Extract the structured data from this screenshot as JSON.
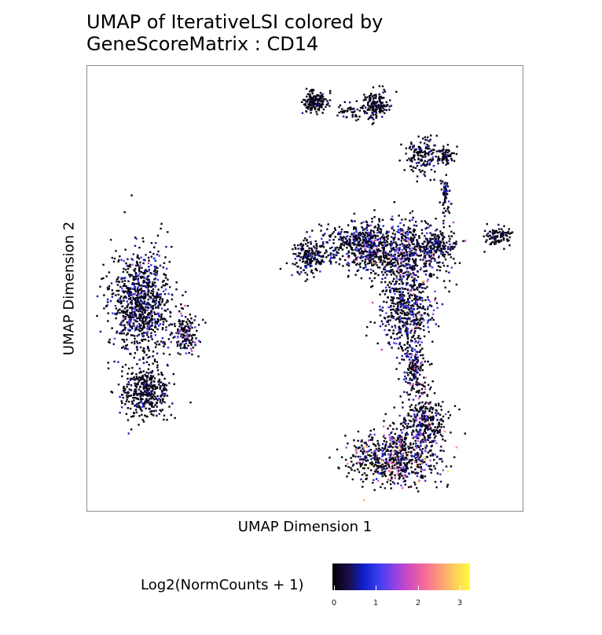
{
  "chart_data": {
    "type": "scatter",
    "title_line1": "UMAP of IterativeLSI colored by",
    "title_line2": "GeneScoreMatrix : CD14",
    "xlabel": "UMAP Dimension 1",
    "ylabel": "UMAP Dimension 2",
    "legend": {
      "title": "Log2(NormCounts + 1)",
      "ticks": [
        "0",
        "1",
        "2",
        "3"
      ],
      "range": [
        0,
        3.3
      ],
      "colormap": [
        "#000004",
        "#1b0c42",
        "#0d1ec8",
        "#3a3df0",
        "#8a42e8",
        "#d04ac0",
        "#f46a9a",
        "#fb9a7a",
        "#fdcf5a",
        "#fffb3a"
      ]
    },
    "grid": false,
    "clusters": [
      {
        "cx": 0.12,
        "cy": 0.53,
        "rx": 0.07,
        "ry": 0.12,
        "n": 900,
        "mean": 0.6
      },
      {
        "cx": 0.13,
        "cy": 0.73,
        "rx": 0.055,
        "ry": 0.06,
        "n": 400,
        "mean": 0.4
      },
      {
        "cx": 0.22,
        "cy": 0.6,
        "rx": 0.03,
        "ry": 0.05,
        "n": 150,
        "mean": 1.2
      },
      {
        "cx": 0.51,
        "cy": 0.43,
        "rx": 0.045,
        "ry": 0.04,
        "n": 200,
        "mean": 0.5
      },
      {
        "cx": 0.63,
        "cy": 0.4,
        "rx": 0.09,
        "ry": 0.05,
        "n": 450,
        "mean": 0.7
      },
      {
        "cx": 0.72,
        "cy": 0.42,
        "rx": 0.1,
        "ry": 0.07,
        "n": 600,
        "mean": 0.9
      },
      {
        "cx": 0.8,
        "cy": 0.4,
        "rx": 0.05,
        "ry": 0.03,
        "n": 150,
        "mean": 0.5
      },
      {
        "cx": 0.94,
        "cy": 0.38,
        "rx": 0.03,
        "ry": 0.02,
        "n": 100,
        "mean": 0.3
      },
      {
        "cx": 0.73,
        "cy": 0.55,
        "rx": 0.06,
        "ry": 0.09,
        "n": 500,
        "mean": 0.8
      },
      {
        "cx": 0.75,
        "cy": 0.68,
        "rx": 0.03,
        "ry": 0.06,
        "n": 180,
        "mean": 0.8
      },
      {
        "cx": 0.7,
        "cy": 0.88,
        "rx": 0.1,
        "ry": 0.06,
        "n": 700,
        "mean": 1.3
      },
      {
        "cx": 0.77,
        "cy": 0.8,
        "rx": 0.05,
        "ry": 0.06,
        "n": 300,
        "mean": 1.1
      },
      {
        "cx": 0.52,
        "cy": 0.08,
        "rx": 0.03,
        "ry": 0.025,
        "n": 160,
        "mean": 0.3
      },
      {
        "cx": 0.66,
        "cy": 0.09,
        "rx": 0.03,
        "ry": 0.03,
        "n": 160,
        "mean": 0.3
      },
      {
        "cx": 0.77,
        "cy": 0.2,
        "rx": 0.04,
        "ry": 0.04,
        "n": 150,
        "mean": 0.4
      },
      {
        "cx": 0.82,
        "cy": 0.2,
        "rx": 0.02,
        "ry": 0.02,
        "n": 60,
        "mean": 0.3
      },
      {
        "cx": 0.82,
        "cy": 0.29,
        "rx": 0.01,
        "ry": 0.04,
        "n": 60,
        "mean": 0.4
      },
      {
        "cx": 0.6,
        "cy": 0.1,
        "rx": 0.04,
        "ry": 0.02,
        "n": 40,
        "mean": 0.3
      }
    ]
  }
}
